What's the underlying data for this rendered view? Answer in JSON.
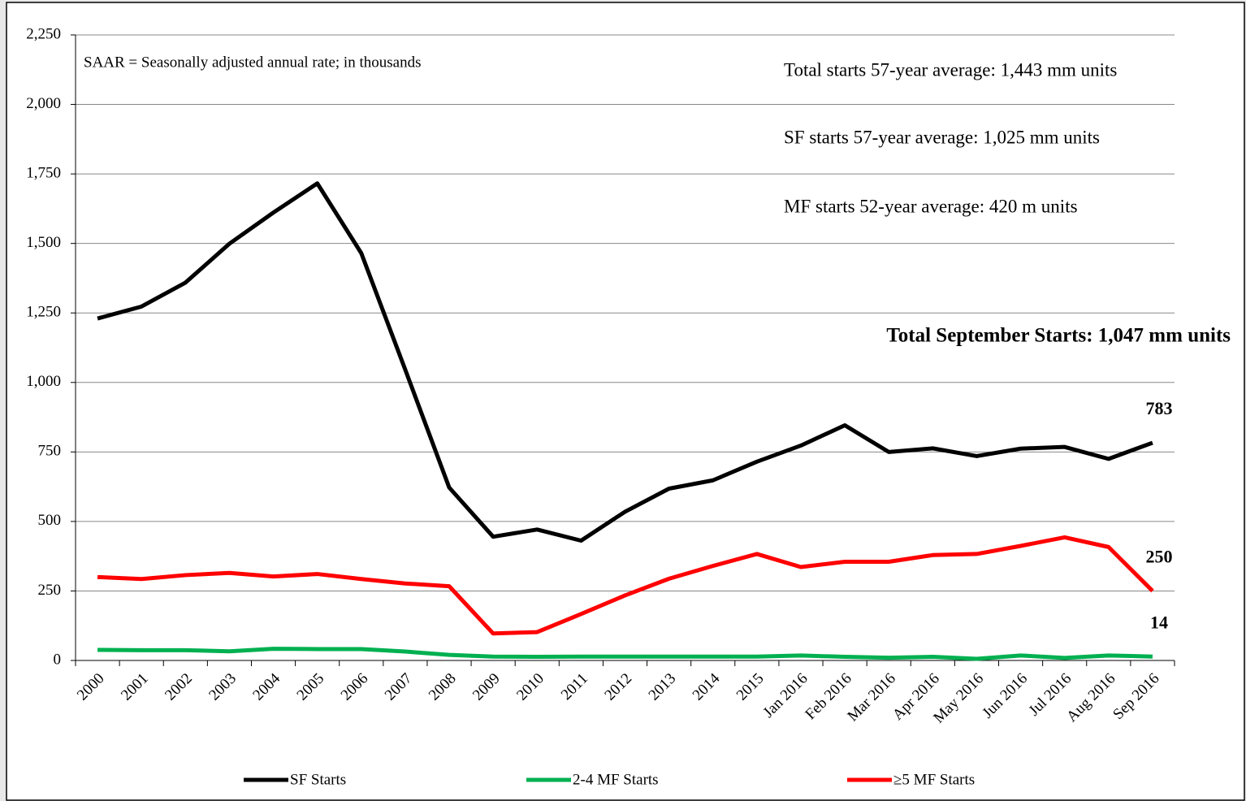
{
  "chart_data": {
    "type": "line",
    "categories": [
      "2000",
      "2001",
      "2002",
      "2003",
      "2004",
      "2005",
      "2006",
      "2007",
      "2008",
      "2009",
      "2010",
      "2011",
      "2012",
      "2013",
      "2014",
      "2015",
      "Jan 2016",
      "Feb 2016",
      "Mar 2016",
      "Apr 2016",
      "May 2016",
      "Jun 2016",
      "Jul 2016",
      "Aug 2016",
      "Sep 2016"
    ],
    "series": [
      {
        "name": "SF Starts",
        "color": "#000000",
        "values": [
          1230,
          1273,
          1359,
          1499,
          1611,
          1716,
          1465,
          1046,
          622,
          445,
          471,
          431,
          535,
          618,
          648,
          715,
          773,
          846,
          750,
          763,
          735,
          762,
          768,
          725,
          783
        ]
      },
      {
        "name": "2-4 MF Starts",
        "color": "#00b050",
        "values": [
          38,
          37,
          37,
          33,
          42,
          41,
          41,
          32,
          20,
          14,
          13,
          14,
          14,
          14,
          14,
          14,
          18,
          13,
          10,
          13,
          6,
          18,
          9,
          18,
          14
        ]
      },
      {
        "name": "≥5 MF Starts",
        "color": "#ff0000",
        "values": [
          300,
          293,
          307,
          315,
          302,
          311,
          293,
          277,
          267,
          97,
          102,
          167,
          234,
          294,
          340,
          383,
          336,
          355,
          355,
          379,
          383,
          412,
          443,
          408,
          250
        ]
      }
    ],
    "ylim": [
      0,
      2250
    ],
    "yticks": [
      0,
      250,
      500,
      750,
      {
        "value": 1000,
        "label": "1,000"
      },
      {
        "value": 1250,
        "label": "1,250"
      },
      {
        "value": 1500,
        "label": "1,500"
      },
      {
        "value": 1750,
        "label": "1,750"
      },
      {
        "value": 2000,
        "label": "2,000"
      },
      {
        "value": 2250,
        "label": "2,250"
      }
    ],
    "grid": true,
    "legend": "bottom",
    "annotations": [
      "SAAR = Seasonally adjusted annual rate; in thousands",
      "Total starts 57-year average: 1,443 mm units",
      "SF starts 57-year average: 1,025 mm units",
      "MF starts 52-year average: 420 m units",
      "Total September Starts: 1,047 mm units"
    ]
  }
}
